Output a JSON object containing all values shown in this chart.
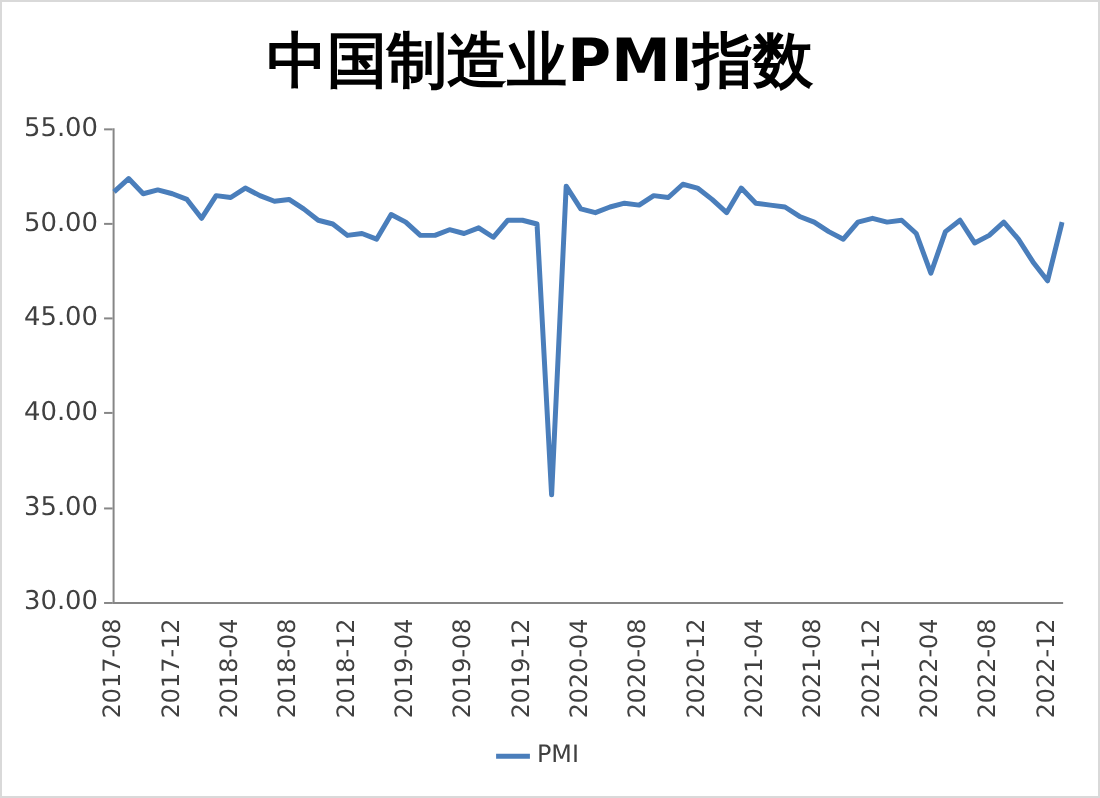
{
  "chart_data": {
    "type": "line",
    "title": "中国制造业PMI指数",
    "categories": [
      "2017-08",
      null,
      null,
      null,
      "2017-12",
      null,
      null,
      null,
      "2018-04",
      null,
      null,
      null,
      "2018-08",
      null,
      null,
      null,
      "2018-12",
      null,
      null,
      null,
      "2019-04",
      null,
      null,
      null,
      "2019-08",
      null,
      null,
      null,
      "2019-12",
      null,
      null,
      null,
      "2020-04",
      null,
      null,
      null,
      "2020-08",
      null,
      null,
      null,
      "2020-12",
      null,
      null,
      null,
      "2021-04",
      null,
      null,
      null,
      "2021-08",
      null,
      null,
      null,
      "2021-12",
      null,
      null,
      null,
      "2022-04",
      null,
      null,
      null,
      "2022-08",
      null,
      null,
      null,
      "2022-12",
      null
    ],
    "series": [
      {
        "name": "PMI",
        "color": "#4a7ebb",
        "values": [
          51.7,
          52.4,
          51.6,
          51.8,
          51.6,
          51.3,
          50.3,
          51.5,
          51.4,
          51.9,
          51.5,
          51.2,
          51.3,
          50.8,
          50.2,
          50.0,
          49.4,
          49.5,
          49.2,
          50.5,
          50.1,
          49.4,
          49.4,
          49.7,
          49.5,
          49.8,
          49.3,
          50.2,
          50.2,
          50.0,
          35.7,
          52.0,
          50.8,
          50.6,
          50.9,
          51.1,
          51.0,
          51.5,
          51.4,
          52.1,
          51.9,
          51.3,
          50.6,
          51.9,
          51.1,
          51.0,
          50.9,
          50.4,
          50.1,
          49.6,
          49.2,
          50.1,
          50.3,
          50.1,
          50.2,
          49.5,
          47.4,
          49.6,
          50.2,
          49.0,
          49.4,
          50.1,
          49.2,
          48.0,
          47.0,
          50.1
        ]
      }
    ],
    "ylim": [
      30,
      55
    ],
    "yticks": [
      {
        "value": 30,
        "label": "30.00"
      },
      {
        "value": 35,
        "label": "35.00"
      },
      {
        "value": 40,
        "label": "40.00"
      },
      {
        "value": 45,
        "label": "45.00"
      },
      {
        "value": 50,
        "label": "50.00"
      },
      {
        "value": 55,
        "label": "55.00"
      }
    ],
    "grid": false,
    "legend": "bottom",
    "marker": "none"
  }
}
